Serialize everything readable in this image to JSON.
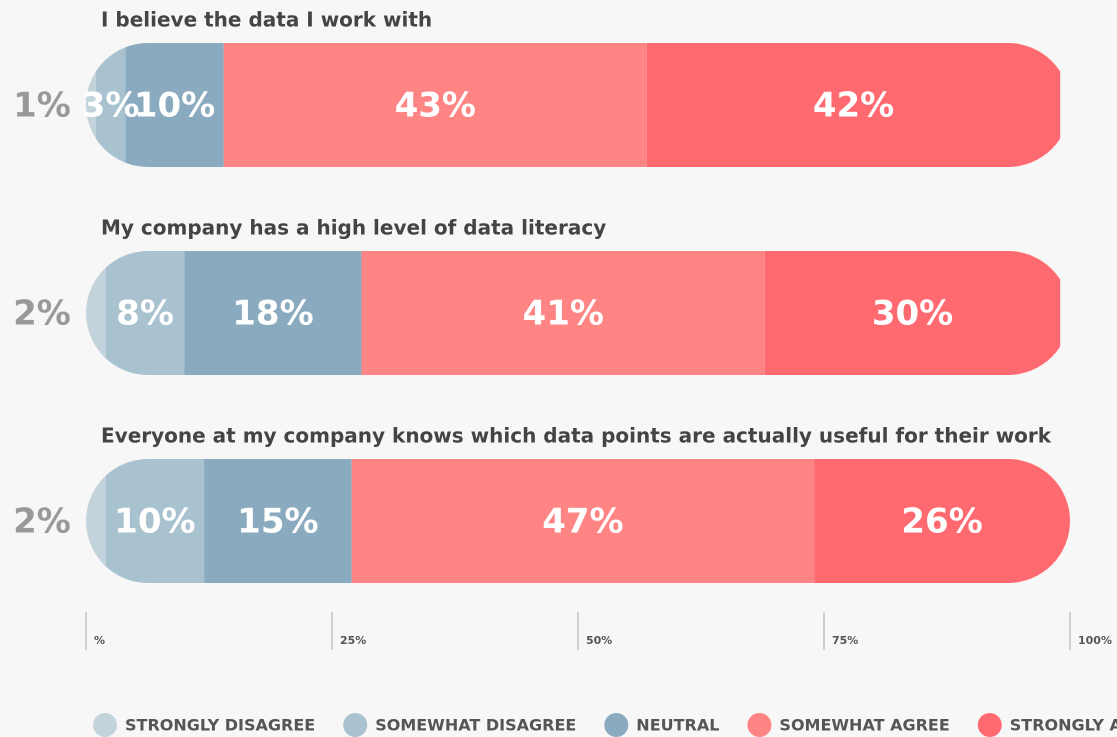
{
  "chart_data": {
    "type": "stacked-bar",
    "orientation": "horizontal",
    "categories": [
      "I believe the data I work with",
      "My company has a high level of data literacy",
      "Everyone at my company knows which data points are actually useful for their work"
    ],
    "series": [
      {
        "name": "STRONGLY DISAGREE",
        "color": "#c3d3dc",
        "values": [
          1,
          2,
          2
        ],
        "value_labels": [
          "1%",
          "2%",
          "2%"
        ]
      },
      {
        "name": "SOMEWHAT DISAGREE",
        "color": "#a9c2cf",
        "values": [
          3,
          8,
          10
        ],
        "value_labels": [
          "3%",
          "8%",
          "10%"
        ]
      },
      {
        "name": "NEUTRAL",
        "color": "#8aabbf",
        "values": [
          10,
          18,
          15
        ],
        "value_labels": [
          "10%",
          "18%",
          "15%"
        ]
      },
      {
        "name": "SOMEWHAT AGREE",
        "color": "#ff8585",
        "values": [
          43,
          41,
          47
        ],
        "value_labels": [
          "43%",
          "41%",
          "47%"
        ]
      },
      {
        "name": "STRONGLY AGREE",
        "color": "#ff6a70",
        "values": [
          42,
          30,
          26
        ],
        "value_labels": [
          "42%",
          "30%",
          "26%"
        ]
      }
    ],
    "xlim": [
      0,
      100
    ],
    "xticks": [
      {
        "value": 0,
        "label": "%"
      },
      {
        "value": 25,
        "label": "25%"
      },
      {
        "value": 50,
        "label": "50%"
      },
      {
        "value": 75,
        "label": "75%"
      },
      {
        "value": 100,
        "label": "100%"
      }
    ],
    "legend": "bottom"
  }
}
